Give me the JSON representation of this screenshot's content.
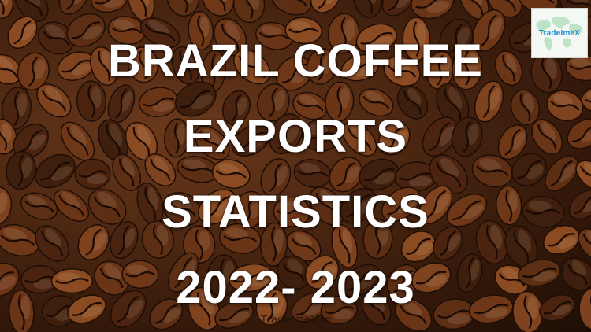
{
  "poster": {
    "title_lines": [
      "BRAZIL COFFEE",
      "EXPORTS",
      "STATISTICS",
      "2022- 2023"
    ],
    "logo_text": "TradeImeX",
    "watermark": "TradeImeX.in"
  },
  "colors": {
    "title": "#ffffff",
    "logo_text": "#1a8fd6",
    "bean_dark": "#3b1d0c",
    "bean_light": "#8a4a22"
  }
}
